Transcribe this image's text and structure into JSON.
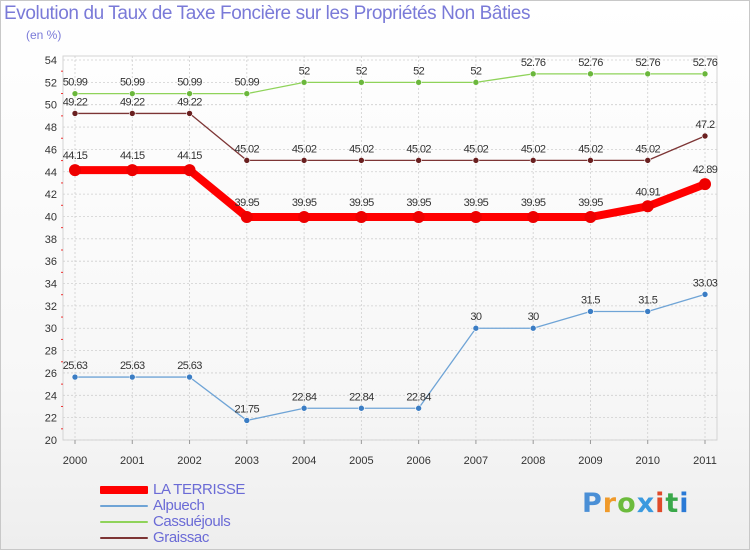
{
  "colors": {
    "title": "#7a7ad8",
    "axis_text": "#333333",
    "grid": "#cfcfcf",
    "accent_ticks": "#ee3333"
  },
  "chart_data": {
    "type": "line",
    "title": "Evolution du Taux de Taxe Foncière sur les Propriétés Non Bâties",
    "subtitle": "(en %)",
    "xlabel": "",
    "ylabel": "",
    "categories": [
      "2000",
      "2001",
      "2002",
      "2003",
      "2004",
      "2005",
      "2006",
      "2007",
      "2008",
      "2009",
      "2010",
      "2011"
    ],
    "ylim": [
      20,
      54
    ],
    "yticks": [
      "20",
      "22",
      "24",
      "26",
      "28",
      "30",
      "32",
      "34",
      "36",
      "38",
      "40",
      "42",
      "44",
      "46",
      "48",
      "50",
      "52",
      "54"
    ],
    "grid": true,
    "legend_position": "bottom-left",
    "series": [
      {
        "name": "Cassuéjouls",
        "color": "#8fd35a",
        "dot": "#6bb73c",
        "width": 1.3,
        "dot_radius": 3,
        "values": [
          50.99,
          50.99,
          50.99,
          50.99,
          52,
          52,
          52,
          52,
          52.76,
          52.76,
          52.76,
          52.76
        ],
        "labels": [
          "50.99",
          "50.99",
          "50.99",
          "50.99",
          "52",
          "52",
          "52",
          "52",
          "52.76",
          "52.76",
          "52.76",
          "52.76"
        ]
      },
      {
        "name": "Graissac",
        "color": "#7d3535",
        "dot": "#6a2020",
        "width": 1.3,
        "dot_radius": 3,
        "values": [
          49.22,
          49.22,
          49.22,
          45.02,
          45.02,
          45.02,
          45.02,
          45.02,
          45.02,
          45.02,
          45.02,
          47.2
        ],
        "labels": [
          "49.22",
          "49.22",
          "49.22",
          "45.02",
          "45.02",
          "45.02",
          "45.02",
          "45.02",
          "45.02",
          "45.02",
          "45.02",
          "47.2"
        ]
      },
      {
        "name": "LA TERRISSE",
        "color": "#ff0000",
        "dot": "#ee0000",
        "width": 8,
        "dot_radius": 6,
        "values": [
          44.15,
          44.15,
          44.15,
          39.95,
          39.95,
          39.95,
          39.95,
          39.95,
          39.95,
          39.95,
          40.91,
          42.89
        ],
        "labels": [
          "44.15",
          "44.15",
          "44.15",
          "39.95",
          "39.95",
          "39.95",
          "39.95",
          "39.95",
          "39.95",
          "39.95",
          "40.91",
          "42.89"
        ]
      },
      {
        "name": "Alpuech",
        "color": "#6fa4d6",
        "dot": "#3b7dc4",
        "width": 1.3,
        "dot_radius": 3,
        "values": [
          25.63,
          25.63,
          25.63,
          21.75,
          22.84,
          22.84,
          22.84,
          30,
          30,
          31.5,
          31.5,
          33.03
        ],
        "labels": [
          "25.63",
          "25.63",
          "25.63",
          "21.75",
          "22.84",
          "22.84",
          "22.84",
          "30",
          "30",
          "31.5",
          "31.5",
          "33.03"
        ]
      }
    ],
    "legend": [
      "LA TERRISSE",
      "Alpuech",
      "Cassuéjouls",
      "Graissac"
    ]
  },
  "logo": {
    "letters": [
      "P",
      "r",
      "o",
      "x",
      "i",
      "t",
      "i"
    ]
  }
}
